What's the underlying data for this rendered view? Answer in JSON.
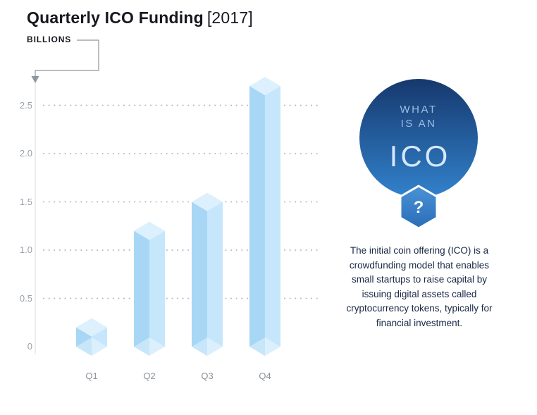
{
  "title": {
    "main": "Quarterly ICO Funding",
    "year": "[2017]"
  },
  "axis": {
    "unit_label": "BILLIONS"
  },
  "chart_data": {
    "type": "bar",
    "style": "isometric-3d",
    "title": "Quarterly ICO Funding [2017]",
    "xlabel": "",
    "ylabel": "BILLIONS",
    "categories": [
      "Q1",
      "Q2",
      "Q3",
      "Q4"
    ],
    "values": [
      0.2,
      1.2,
      1.5,
      2.7
    ],
    "yticks": [
      0,
      0.5,
      1.0,
      1.5,
      2.0,
      2.5
    ],
    "ytick_labels": [
      "0",
      "0.5",
      "1.0",
      "1.5",
      "2.0",
      "2.5"
    ],
    "ylim": [
      0,
      2.75
    ],
    "grid": "dotted-horizontal",
    "legend": "none",
    "colors": {
      "bar_left_face": "#a7d7f5",
      "bar_right_face": "#c6e7fb",
      "bar_top_face": "#ddf0fd",
      "bar_bottom_overlay": "rgba(255,255,255,0.38)",
      "gridline": "#b4bac0",
      "tick_label": "#9aa1a8",
      "category_label": "#8b9299",
      "axis_line": "#d7dbdf",
      "connector": "#8f969d"
    }
  },
  "badge": {
    "line1": "WHAT",
    "line2": "IS AN",
    "line3": "ICO",
    "question": "?",
    "colors": {
      "circle_top": "#16386d",
      "circle_bottom": "#3282cc",
      "hex_top": "#4a92d6",
      "hex_bottom": "#2a6db8",
      "small_text": "#9bbfe4",
      "ico_text": "#d5e8f9",
      "question_text": "#ffffff"
    }
  },
  "description": "The initial coin offering (ICO) is a crowdfunding model that enables small startups to raise capital by issuing digital assets called cryptocurrency tokens, typically for financial investment."
}
